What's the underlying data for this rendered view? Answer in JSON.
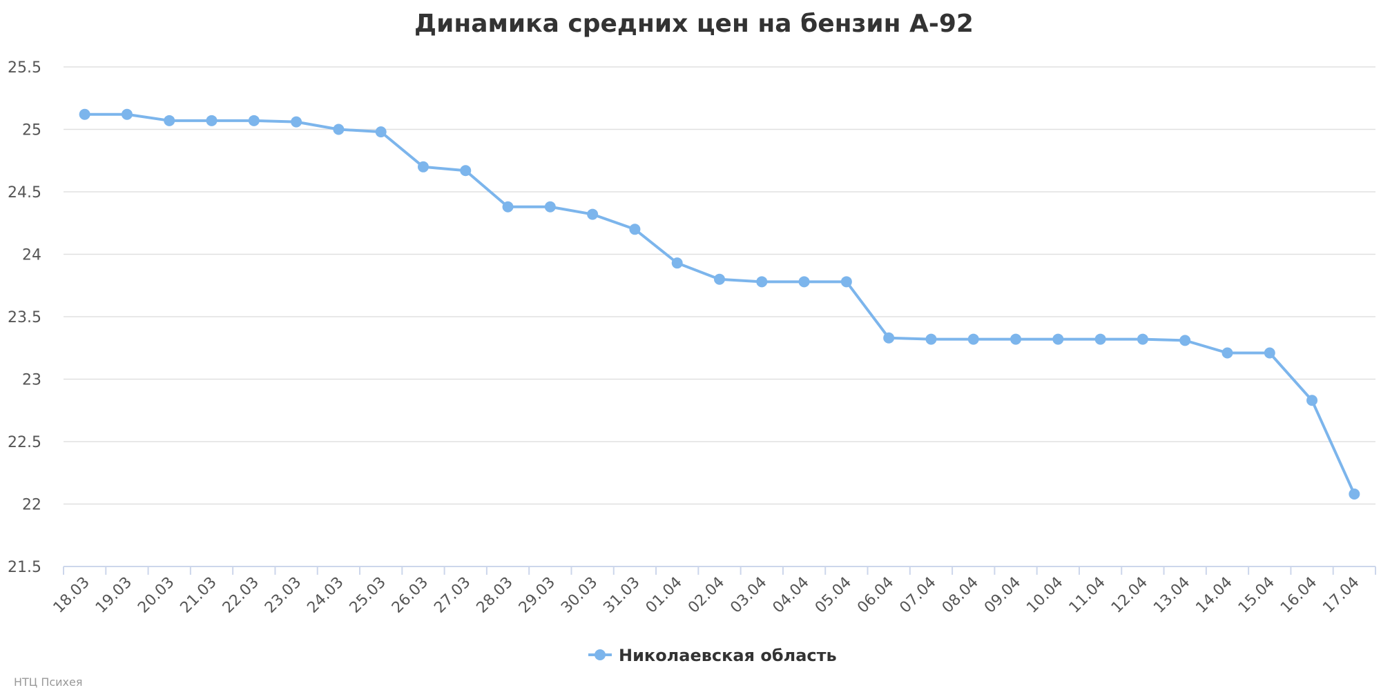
{
  "chart_data": {
    "type": "line",
    "title": "Динамика средних цен на бензин А-92",
    "categories": [
      "18.03",
      "19.03",
      "20.03",
      "21.03",
      "22.03",
      "23.03",
      "24.03",
      "25.03",
      "26.03",
      "27.03",
      "28.03",
      "29.03",
      "30.03",
      "31.03",
      "01.04",
      "02.04",
      "03.04",
      "04.04",
      "05.04",
      "06.04",
      "07.04",
      "08.04",
      "09.04",
      "10.04",
      "11.04",
      "12.04",
      "13.04",
      "14.04",
      "15.04",
      "16.04",
      "17.04"
    ],
    "series": [
      {
        "name": "Николаевская область",
        "color": "#7cb5ec",
        "values": [
          25.12,
          25.12,
          25.07,
          25.07,
          25.07,
          25.06,
          25.0,
          24.98,
          24.7,
          24.67,
          24.38,
          24.38,
          24.32,
          24.2,
          23.93,
          23.8,
          23.78,
          23.78,
          23.78,
          23.33,
          23.32,
          23.32,
          23.32,
          23.32,
          23.32,
          23.32,
          23.31,
          23.21,
          23.21,
          22.83,
          22.08
        ]
      }
    ],
    "ylim": [
      21.5,
      25.5
    ],
    "yticks": [
      "21.5",
      "22",
      "22.5",
      "23",
      "23.5",
      "24",
      "24.5",
      "25",
      "25.5"
    ],
    "xlabel": "",
    "ylabel": "",
    "grid": true,
    "legend_position": "bottom-center"
  },
  "credit": "НТЦ Психея"
}
